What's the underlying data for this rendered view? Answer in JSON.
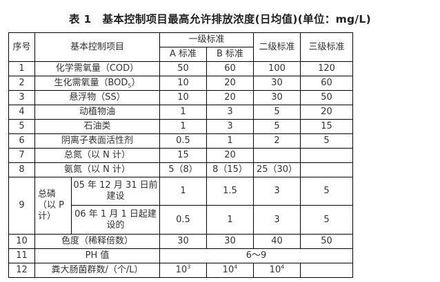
{
  "title": "表 1　基本控制项目最高允许排放浓度(日均值)(单位：mg/L)",
  "headers": {
    "no": "序号",
    "item": "基本控制项目",
    "level1": "一级标准",
    "level1a": "A 标准",
    "level1b": "B 标准",
    "level2": "二级标准",
    "level3": "三级标准"
  },
  "rows": [
    {
      "no": "1",
      "item": "化学需氧量（COD）",
      "a": "50",
      "b": "60",
      "l2": "100",
      "l3": "120"
    },
    {
      "no": "2",
      "item": "生化需氧量（BOD",
      "item_sub": "5",
      "item_end": "）",
      "a": "10",
      "b": "20",
      "l2": "30",
      "l3": "60"
    },
    {
      "no": "3",
      "item": "悬浮物（SS）",
      "a": "10",
      "b": "20",
      "l2": "30",
      "l3": "50"
    },
    {
      "no": "4",
      "item": "动植物油",
      "a": "1",
      "b": "3",
      "l2": "5",
      "l3": "20"
    },
    {
      "no": "5",
      "item": "石油类",
      "a": "1",
      "b": "3",
      "l2": "5",
      "l3": "15"
    },
    {
      "no": "6",
      "item": "阴离子表面活性剂",
      "a": "0.5",
      "b": "1",
      "l2": "2",
      "l3": "5"
    },
    {
      "no": "7",
      "item": "总氮（以 N 计）",
      "a": "15",
      "b": "20",
      "l2": "",
      "l3": ""
    },
    {
      "no": "8",
      "item": "氨氮（以 N 计）",
      "a": "5（8）",
      "b": "8（15）",
      "l2": "25（30）",
      "l3": ""
    }
  ],
  "row9": {
    "no": "9",
    "item": "总磷（以 P 计）",
    "sub": [
      {
        "label": "05 年 12 月 31 日前建设",
        "a": "1",
        "b": "1.5",
        "l2": "3",
        "l3": "5"
      },
      {
        "label": "06 年 1 月 1  日起建设的",
        "a": "0.5",
        "b": "1",
        "l2": "3",
        "l3": "5"
      }
    ]
  },
  "row10": {
    "no": "10",
    "item": "色度（稀释倍数）",
    "a": "30",
    "b": "30",
    "l2": "40",
    "l3": "50"
  },
  "row11": {
    "no": "11",
    "item": "PH 值",
    "value": "6～9"
  },
  "row12": {
    "no": "12",
    "item": "粪大肠菌群数/（个/L）",
    "a": "10",
    "a_exp": "3",
    "b": "10",
    "b_exp": "4",
    "l2": "10",
    "l2_exp": "4",
    "l3": ""
  }
}
